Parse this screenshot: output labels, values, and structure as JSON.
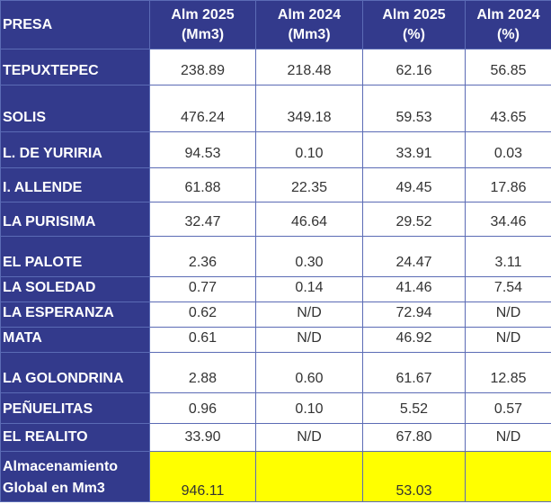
{
  "headers": [
    [
      "PRESA"
    ],
    [
      "Alm 2025",
      "(Mm3)"
    ],
    [
      "Alm 2024",
      "(Mm3)"
    ],
    [
      "Alm 2025",
      "(%)"
    ],
    [
      "Alm 2024",
      "(%)"
    ]
  ],
  "rows": [
    {
      "name": "TEPUXTEPEC",
      "alm2025_mm3": "238.89",
      "alm2024_mm3": "218.48",
      "alm2025_pct": "62.16",
      "alm2024_pct": "56.85"
    },
    {
      "name": "SOLIS",
      "alm2025_mm3": "476.24",
      "alm2024_mm3": "349.18",
      "alm2025_pct": "59.53",
      "alm2024_pct": "43.65"
    },
    {
      "name": "L. DE YURIRIA",
      "alm2025_mm3": "94.53",
      "alm2024_mm3": "0.10",
      "alm2025_pct": "33.91",
      "alm2024_pct": "0.03"
    },
    {
      "name": "I. ALLENDE",
      "alm2025_mm3": "61.88",
      "alm2024_mm3": "22.35",
      "alm2025_pct": "49.45",
      "alm2024_pct": "17.86"
    },
    {
      "name": "LA PURISIMA",
      "alm2025_mm3": "32.47",
      "alm2024_mm3": "46.64",
      "alm2025_pct": "29.52",
      "alm2024_pct": "34.46"
    },
    {
      "name": "EL PALOTE",
      "alm2025_mm3": "2.36",
      "alm2024_mm3": "0.30",
      "alm2025_pct": "24.47",
      "alm2024_pct": "3.11"
    },
    {
      "name": "LA SOLEDAD",
      "alm2025_mm3": "0.77",
      "alm2024_mm3": "0.14",
      "alm2025_pct": "41.46",
      "alm2024_pct": "7.54"
    },
    {
      "name": "LA ESPERANZA",
      "alm2025_mm3": "0.62",
      "alm2024_mm3": "N/D",
      "alm2025_pct": "72.94",
      "alm2024_pct": "N/D"
    },
    {
      "name": "MATA",
      "alm2025_mm3": "0.61",
      "alm2024_mm3": "N/D",
      "alm2025_pct": "46.92",
      "alm2024_pct": "N/D"
    },
    {
      "name": "LA GOLONDRINA",
      "alm2025_mm3": "2.88",
      "alm2024_mm3": "0.60",
      "alm2025_pct": "61.67",
      "alm2024_pct": "12.85"
    },
    {
      "name": "PEÑUELITAS",
      "alm2025_mm3": "0.96",
      "alm2024_mm3": "0.10",
      "alm2025_pct": "5.52",
      "alm2024_pct": "0.57"
    },
    {
      "name": "EL REALITO",
      "alm2025_mm3": "33.90",
      "alm2024_mm3": "N/D",
      "alm2025_pct": "67.80",
      "alm2024_pct": "N/D"
    }
  ],
  "total": {
    "label_line1": "Almacenamiento",
    "label_line2": "Global en Mm3",
    "alm2025_mm3": "946.11",
    "alm2024_mm3": "",
    "alm2025_pct": "53.03",
    "alm2024_pct": ""
  },
  "colors": {
    "header_bg": "#333a8c",
    "header_text": "#ffffff",
    "cell_text": "#333333",
    "total_highlight": "#ffff00",
    "border": "#5b6bb5"
  }
}
